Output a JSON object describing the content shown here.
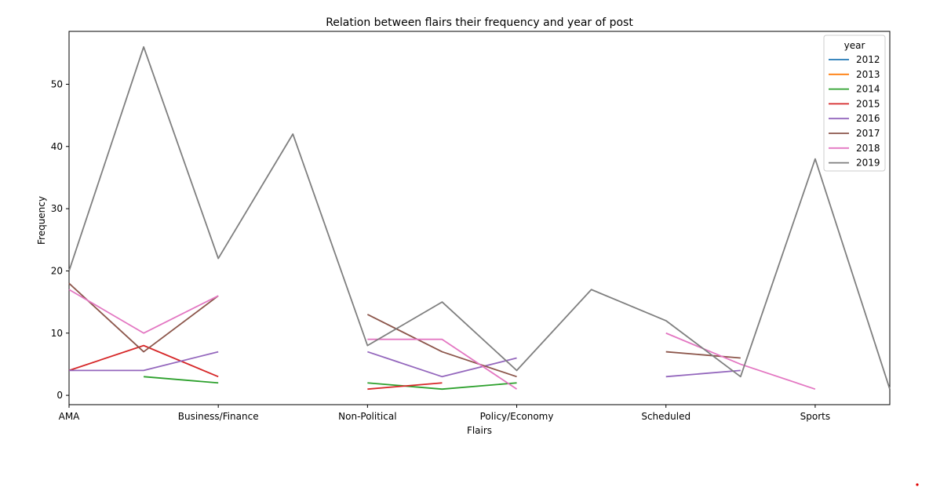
{
  "chart_data": {
    "type": "line",
    "title": "Relation between flairs their frequency and year of post",
    "xlabel": "Flairs",
    "ylabel": "Frequency",
    "categories": [
      "AMA",
      "",
      "Business/Finance",
      "",
      "Non-Political",
      "",
      "Policy/Economy",
      "",
      "Scheduled",
      "",
      "Sports",
      ""
    ],
    "tick_labels": [
      "AMA",
      "Business/Finance",
      "Non-Political",
      "Policy/Economy",
      "Scheduled",
      "Sports"
    ],
    "xlim": [
      0,
      11
    ],
    "ylim": [
      -1.5,
      58.5
    ],
    "yticks": [
      0,
      10,
      20,
      30,
      40,
      50
    ],
    "grid": false,
    "legend_title": "year",
    "legend_position": "top-right",
    "series": [
      {
        "name": "2012",
        "color": "#1f77b4",
        "values": [
          null,
          null,
          null,
          null,
          null,
          null,
          null,
          null,
          null,
          null,
          null,
          null
        ]
      },
      {
        "name": "2013",
        "color": "#ff7f0e",
        "values": [
          null,
          null,
          null,
          null,
          null,
          null,
          null,
          null,
          null,
          null,
          null,
          null
        ]
      },
      {
        "name": "2014",
        "color": "#2ca02c",
        "values": [
          null,
          3,
          2,
          null,
          2,
          1,
          2,
          null,
          null,
          null,
          null,
          null
        ]
      },
      {
        "name": "2015",
        "color": "#d62728",
        "values": [
          4,
          8,
          3,
          null,
          1,
          2,
          null,
          null,
          null,
          null,
          null,
          null
        ]
      },
      {
        "name": "2016",
        "color": "#9467bd",
        "values": [
          4,
          4,
          7,
          null,
          7,
          3,
          6,
          null,
          3,
          4,
          null,
          null
        ]
      },
      {
        "name": "2017",
        "color": "#8c564b",
        "values": [
          18,
          7,
          16,
          null,
          13,
          7,
          3,
          null,
          7,
          6,
          null,
          null
        ]
      },
      {
        "name": "2018",
        "color": "#e377c2",
        "values": [
          17,
          10,
          16,
          null,
          9,
          9,
          1,
          null,
          10,
          5,
          1,
          null
        ]
      },
      {
        "name": "2019",
        "color": "#7f7f7f",
        "values": [
          20,
          56,
          22,
          42,
          8,
          15,
          4,
          17,
          12,
          3,
          38,
          1
        ]
      }
    ]
  }
}
